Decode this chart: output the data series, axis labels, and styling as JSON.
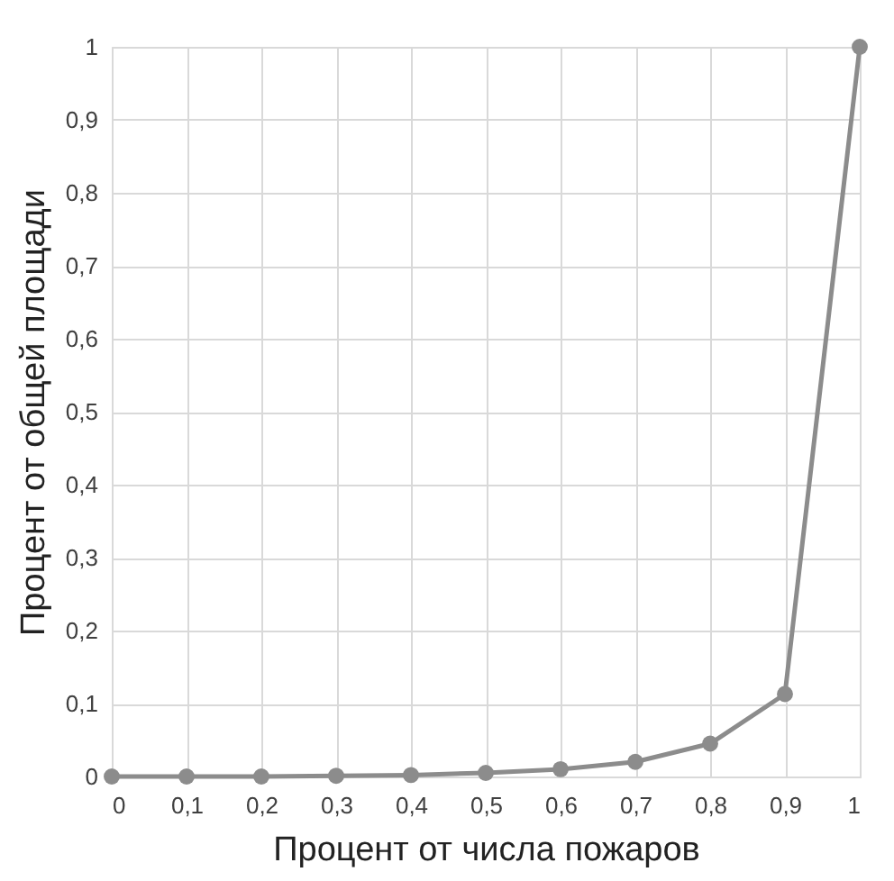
{
  "chart_data": {
    "type": "line",
    "xlabel": "Процент от числа пожаров",
    "ylabel": "Процент от общей площади",
    "x": [
      0,
      0.1,
      0.2,
      0.3,
      0.4,
      0.5,
      0.6,
      0.7,
      0.8,
      0.9,
      1
    ],
    "series": [
      {
        "color": "#8c8c8c",
        "values": [
          0,
          0,
          0,
          0.001,
          0.002,
          0.005,
          0.01,
          0.02,
          0.045,
          0.113,
          1
        ]
      }
    ],
    "xlim": [
      0,
      1
    ],
    "ylim": [
      0,
      1
    ],
    "xticks": [
      0,
      {
        "value": 0.1,
        "label": "0,1"
      },
      {
        "value": 0.2,
        "label": "0,2"
      },
      {
        "value": 0.3,
        "label": "0,3"
      },
      {
        "value": 0.4,
        "label": "0,4"
      },
      {
        "value": 0.5,
        "label": "0,5"
      },
      {
        "value": 0.6,
        "label": "0,6"
      },
      {
        "value": 0.7,
        "label": "0,7"
      },
      {
        "value": 0.8,
        "label": "0,8"
      },
      {
        "value": 0.9,
        "label": "0,9"
      },
      1
    ],
    "yticks": [
      0,
      {
        "value": 0.1,
        "label": "0,1"
      },
      {
        "value": 0.2,
        "label": "0,2"
      },
      {
        "value": 0.3,
        "label": "0,3"
      },
      {
        "value": 0.4,
        "label": "0,4"
      },
      {
        "value": 0.5,
        "label": "0,5"
      },
      {
        "value": 0.6,
        "label": "0,6"
      },
      {
        "value": 0.7,
        "label": "0,7"
      },
      {
        "value": 0.8,
        "label": "0,8"
      },
      {
        "value": 0.9,
        "label": "0,9"
      },
      1
    ],
    "grid": true,
    "marker": "circle",
    "line_style": "solid"
  }
}
